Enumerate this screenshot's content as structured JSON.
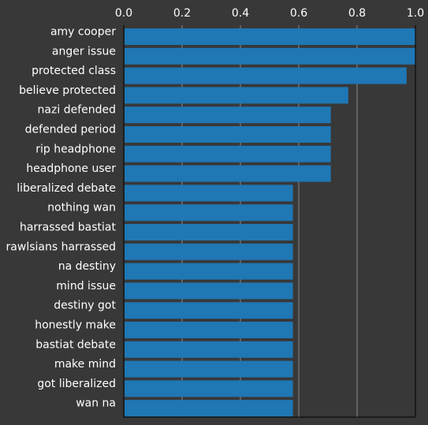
{
  "chart_data": {
    "type": "bar",
    "orientation": "horizontal",
    "title": "",
    "xlabel": "",
    "ylabel": "",
    "xlim": [
      0,
      1.0
    ],
    "x_ticks": [
      0.0,
      0.2,
      0.4,
      0.6,
      0.8,
      1.0
    ],
    "x_tick_labels": [
      "0.0",
      "0.2",
      "0.4",
      "0.6",
      "0.8",
      "1.0"
    ],
    "x_axis_position": "top",
    "grid": "vertical",
    "categories": [
      "amy cooper",
      "anger issue",
      "protected class",
      "believe protected",
      "nazi defended",
      "defended period",
      "rip headphone",
      "headphone user",
      "liberalized debate",
      "nothing wan",
      "harrassed bastiat",
      "rawlsians harrassed",
      "na destiny",
      "mind issue",
      "destiny got",
      "honestly make",
      "bastiat debate",
      "make mind",
      "got liberalized",
      "wan na"
    ],
    "values": [
      1.0,
      1.0,
      0.97,
      0.77,
      0.71,
      0.71,
      0.71,
      0.71,
      0.58,
      0.58,
      0.58,
      0.58,
      0.58,
      0.58,
      0.58,
      0.58,
      0.58,
      0.58,
      0.58,
      0.58
    ],
    "colors": {
      "bar": "#1f77b4",
      "background": "#383838",
      "grid": "#8a8a8a",
      "axis": "#000000",
      "text": "#ffffff"
    }
  }
}
